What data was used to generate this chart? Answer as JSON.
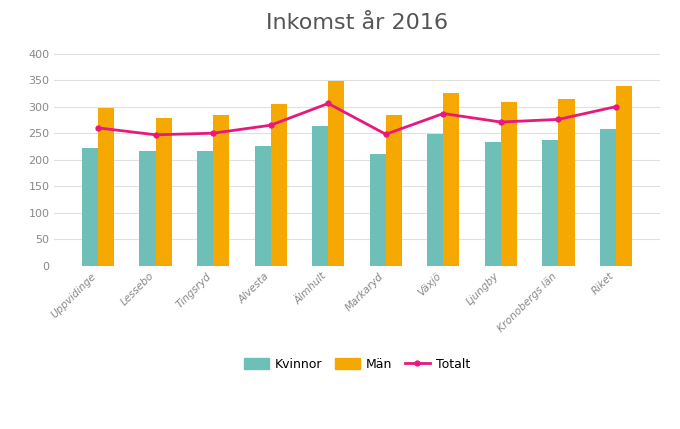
{
  "title": "Inkomst år 2016",
  "categories": [
    "Uppvidinge",
    "Lessebo",
    "Tingsryd",
    "Alvesta",
    "Älmhult",
    "Markaryd",
    "Växjö",
    "Ljungby",
    "Kronobergs län",
    "Riket"
  ],
  "kvinnor": [
    222,
    216,
    216,
    226,
    263,
    211,
    249,
    234,
    237,
    258
  ],
  "man": [
    298,
    279,
    284,
    305,
    349,
    285,
    325,
    309,
    314,
    338
  ],
  "totalt": [
    260,
    247,
    250,
    265,
    306,
    248,
    287,
    271,
    276,
    300
  ],
  "bar_color_kvinnor": "#6dbfb8",
  "bar_color_man": "#f5a800",
  "line_color_totalt": "#e8187c",
  "background_color": "#ffffff",
  "ylim": [
    0,
    420
  ],
  "yticks": [
    0,
    50,
    100,
    150,
    200,
    250,
    300,
    350,
    400
  ],
  "title_fontsize": 16,
  "legend_labels": [
    "Kvinnor",
    "Män",
    "Totalt"
  ],
  "grid_color": "#e0e0e0"
}
